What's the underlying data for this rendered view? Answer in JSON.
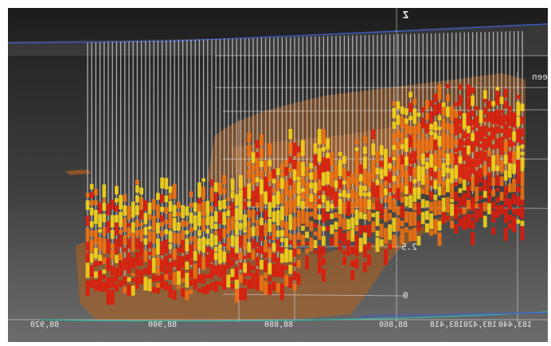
{
  "viewer": {
    "axis_z_label": "Z",
    "side_label": "ueen",
    "x_axis_labels": [
      "88,920",
      "88,900",
      "88,880",
      "88,860",
      "183,418",
      "183,420",
      "183,440"
    ],
    "vertical_axis_labels": [
      "2.5",
      "0"
    ],
    "colors": {
      "background_top": "#1c1c1c",
      "background_bottom": "#6c6c6c",
      "drillhole_trace": "#d8d8d8",
      "grade_high": "#e01a0a",
      "grade_mid": "#f07010",
      "grade_low": "#f2d21a",
      "orebody_shell": "#b4621e",
      "grid_line": "#e6e6e6",
      "surface_line": "#3a5fd8"
    }
  }
}
